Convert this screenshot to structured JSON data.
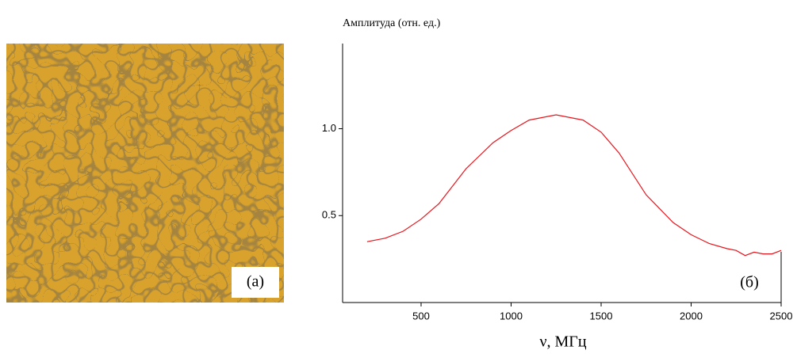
{
  "image_panel": {
    "label": "(a)"
  },
  "chart_data": {
    "type": "line",
    "y_label": "Амплитуда (отн. ед.)",
    "x_label": "ν, МГц",
    "annotation": "(б)",
    "color": "#e8141c",
    "x": [
      200,
      300,
      400,
      500,
      600,
      750,
      900,
      1000,
      1100,
      1250,
      1400,
      1500,
      1600,
      1750,
      1900,
      2000,
      2100,
      2200,
      2250,
      2300,
      2350,
      2400,
      2450,
      2500
    ],
    "values": [
      0.35,
      0.37,
      0.41,
      0.48,
      0.57,
      0.77,
      0.92,
      0.99,
      1.05,
      1.08,
      1.05,
      0.98,
      0.86,
      0.62,
      0.46,
      0.39,
      0.34,
      0.31,
      0.3,
      0.27,
      0.29,
      0.28,
      0.28,
      0.3
    ],
    "xlim": [
      64,
      2500
    ],
    "ylim": [
      0,
      1.49
    ],
    "xticks": [
      500,
      1000,
      1500,
      2000,
      2500
    ],
    "yticks": [
      0.5,
      {
        "value": 1,
        "label": "1.0"
      }
    ]
  }
}
